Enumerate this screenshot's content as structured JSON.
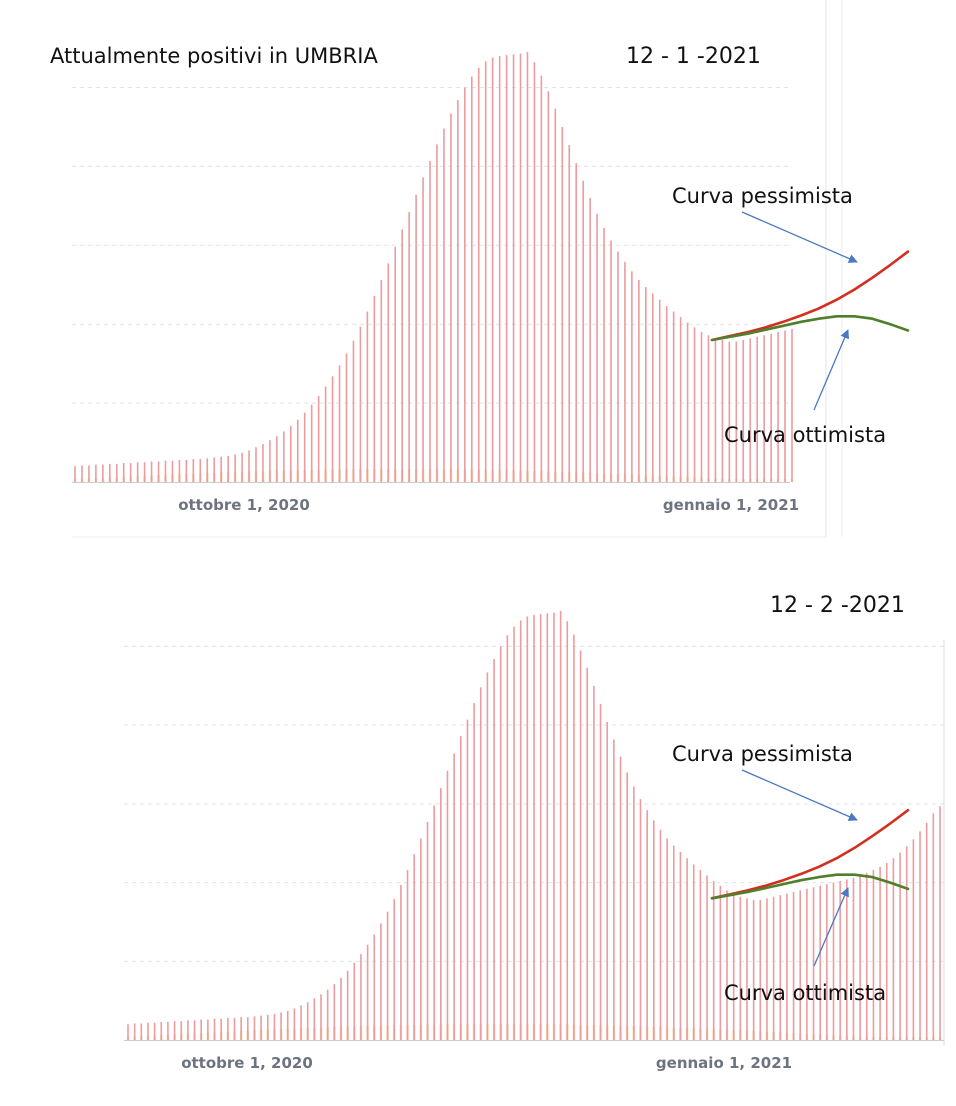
{
  "title": "Attualmente positivi in UMBRIA",
  "colors": {
    "bar": "#ec9b9e",
    "bar_secondary": "#f6c48f",
    "pessimist": "#d32f1f",
    "optimist": "#4f7f2a",
    "arrow": "#4a78c2",
    "grid": "#e3e3e3",
    "tick": "#6d7480"
  },
  "chart_data": [
    {
      "type": "bar",
      "date": "12 - 1 -2021",
      "x_tick_labels": [
        "ottobre 1, 2020",
        "gennaio 1, 2021"
      ],
      "series": [
        {
          "values": [
            20,
            21,
            21,
            22,
            22,
            23,
            23,
            24,
            24,
            25,
            25,
            26,
            26,
            27,
            27,
            28,
            28,
            29,
            29,
            30,
            31,
            32,
            33,
            35,
            37,
            40,
            44,
            48,
            53,
            58,
            64,
            71,
            79,
            88,
            98,
            109,
            121,
            134,
            148,
            163,
            179,
            197,
            216,
            236,
            256,
            277,
            298,
            320,
            342,
            364,
            386,
            407,
            428,
            448,
            467,
            484,
            500,
            514,
            525,
            533,
            538,
            540,
            541,
            542,
            543,
            545,
            532,
            515,
            495,
            473,
            450,
            427,
            404,
            382,
            360,
            340,
            322,
            306,
            292,
            279,
            267,
            256,
            247,
            239,
            231,
            223,
            216,
            209,
            202,
            196,
            190,
            186,
            182,
            180,
            178,
            178,
            180,
            182,
            184,
            186,
            188,
            190,
            192,
            194
          ]
        }
      ],
      "projections": [
        {
          "name": "Curva pessimista",
          "values": [
            180,
            185,
            190,
            196,
            203,
            211,
            220,
            231,
            244,
            259,
            275,
            292
          ]
        },
        {
          "name": "Curva ottimista",
          "values": [
            180,
            184,
            188,
            193,
            198,
            203,
            207,
            210,
            210,
            207,
            200,
            192
          ]
        }
      ]
    },
    {
      "type": "bar",
      "date": "12 - 2 -2021",
      "x_tick_labels": [
        "ottobre 1, 2020",
        "gennaio 1, 2021"
      ],
      "series": [
        {
          "values": [
            20,
            21,
            21,
            22,
            22,
            23,
            23,
            24,
            24,
            25,
            25,
            26,
            26,
            27,
            27,
            28,
            28,
            29,
            29,
            30,
            31,
            32,
            33,
            35,
            37,
            40,
            44,
            48,
            53,
            58,
            64,
            71,
            79,
            88,
            98,
            109,
            121,
            134,
            148,
            163,
            179,
            197,
            216,
            236,
            256,
            277,
            298,
            320,
            342,
            364,
            386,
            407,
            428,
            448,
            467,
            484,
            500,
            514,
            525,
            533,
            538,
            540,
            541,
            542,
            543,
            545,
            532,
            515,
            495,
            473,
            450,
            427,
            404,
            382,
            360,
            340,
            322,
            306,
            292,
            279,
            267,
            256,
            247,
            239,
            231,
            223,
            216,
            209,
            202,
            196,
            190,
            186,
            182,
            180,
            178,
            178,
            180,
            182,
            184,
            186,
            188,
            190,
            192,
            194,
            196,
            198,
            200,
            202,
            204,
            206,
            209,
            212,
            216,
            220,
            225,
            231,
            238,
            246,
            255,
            265,
            276,
            288,
            297
          ]
        }
      ],
      "projections": [
        {
          "name": "Curva pessimista",
          "values": [
            180,
            185,
            190,
            196,
            203,
            211,
            220,
            231,
            244,
            259,
            275,
            292
          ]
        },
        {
          "name": "Curva ottimista",
          "values": [
            180,
            184,
            188,
            193,
            198,
            203,
            207,
            210,
            210,
            207,
            200,
            192
          ]
        }
      ]
    }
  ],
  "annotations": {
    "pessimist_label": "Curva pessimista",
    "optimist_label": "Curva ottimista"
  }
}
